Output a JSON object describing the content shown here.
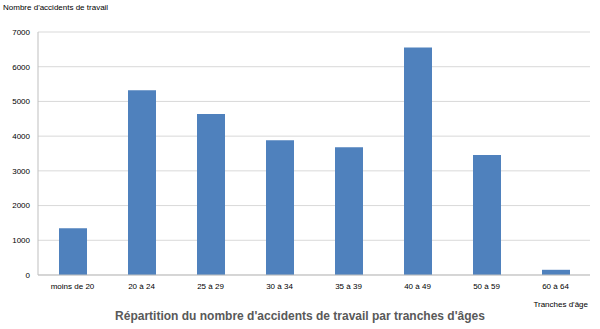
{
  "chart_data": {
    "type": "bar",
    "title": "Répartition du nombre d'accidents de travail par tranches d'âges",
    "ylabel": "Nombre d'accidents de travail",
    "xlabel": "Tranches d'âge",
    "categories": [
      "moins de 20",
      "20 à 24",
      "25 à 29",
      "30 à 34",
      "35 à 39",
      "40 à 49",
      "50 à 59",
      "60 à 64"
    ],
    "values": [
      1350,
      5320,
      4640,
      3880,
      3680,
      6550,
      3460,
      150
    ],
    "color": "#4f81bd",
    "ylim": [
      0,
      7000
    ],
    "yticks": [
      0,
      1000,
      2000,
      3000,
      4000,
      5000,
      6000,
      7000
    ],
    "grid": true
  }
}
